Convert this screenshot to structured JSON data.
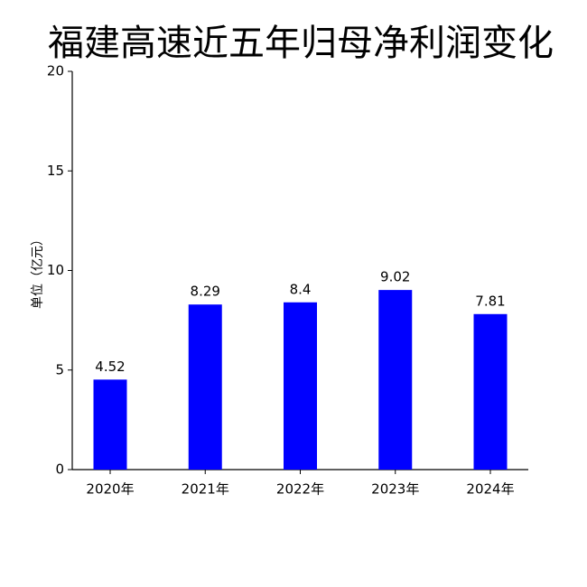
{
  "chart_data": {
    "type": "bar",
    "title": "福建高速近五年归母净利润变化",
    "y_label": "单位（亿元）",
    "categories": [
      "2020年",
      "2021年",
      "2022年",
      "2023年",
      "2024年"
    ],
    "values": [
      4.52,
      8.29,
      8.4,
      9.02,
      7.81
    ],
    "color": "#0000ff",
    "ylim": [
      0,
      20
    ],
    "yticks": [
      0,
      5,
      10,
      15,
      20
    ],
    "grid": false
  }
}
